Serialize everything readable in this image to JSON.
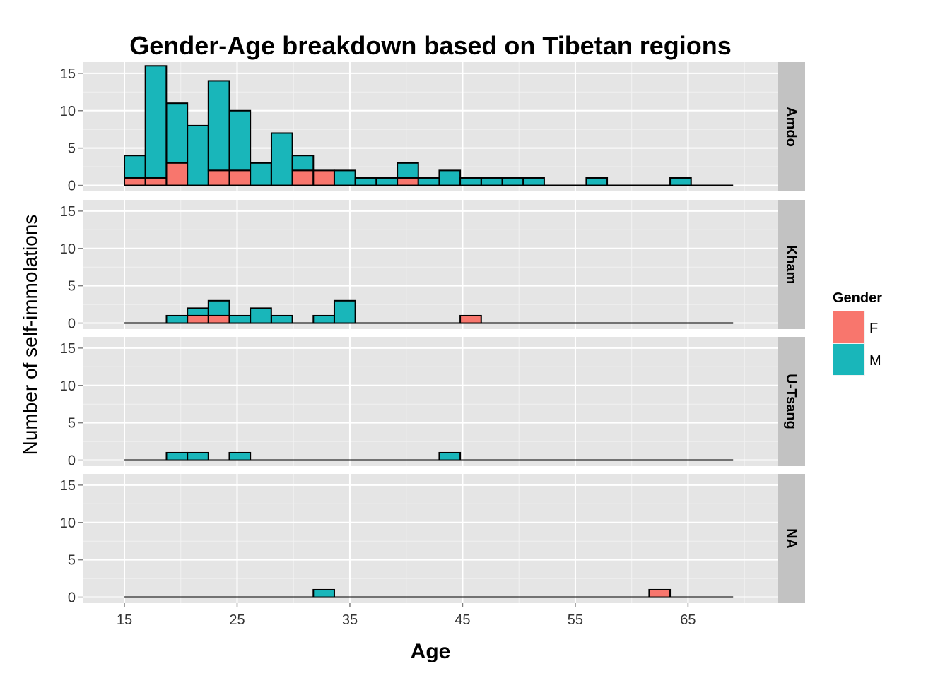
{
  "chart_data": {
    "type": "bar",
    "title": "Gender-Age breakdown based on Tibetan regions",
    "xlabel": "Age",
    "ylabel": "Number of self-immolations",
    "x_ticks": [
      15,
      25,
      35,
      45,
      55,
      65
    ],
    "y_ticks": [
      0,
      5,
      10,
      15
    ],
    "xlim": [
      11.3,
      73.0
    ],
    "ylim": [
      -0.8,
      16.5
    ],
    "baseline_x_range": [
      15,
      69
    ],
    "bin_width": 1.86,
    "grid": true,
    "stacked": true,
    "legend": {
      "title": "Gender",
      "position": "right",
      "entries": [
        {
          "label": "F",
          "color": "#F8766D"
        },
        {
          "label": "M",
          "color": "#19B6BA"
        }
      ]
    },
    "facets": [
      {
        "name": "Amdo",
        "bins": [
          {
            "x": 15.93,
            "F": 1,
            "M": 3
          },
          {
            "x": 17.79,
            "F": 1,
            "M": 15
          },
          {
            "x": 19.66,
            "F": 3,
            "M": 8
          },
          {
            "x": 21.52,
            "F": 0,
            "M": 8
          },
          {
            "x": 23.38,
            "F": 2,
            "M": 12
          },
          {
            "x": 25.24,
            "F": 2,
            "M": 8
          },
          {
            "x": 27.1,
            "F": 0,
            "M": 3
          },
          {
            "x": 28.97,
            "F": 0,
            "M": 7
          },
          {
            "x": 30.83,
            "F": 2,
            "M": 2
          },
          {
            "x": 32.69,
            "F": 2,
            "M": 0
          },
          {
            "x": 34.55,
            "F": 0,
            "M": 2
          },
          {
            "x": 36.41,
            "F": 0,
            "M": 1
          },
          {
            "x": 38.28,
            "F": 0,
            "M": 1
          },
          {
            "x": 40.14,
            "F": 1,
            "M": 2
          },
          {
            "x": 42.0,
            "F": 0,
            "M": 1
          },
          {
            "x": 43.86,
            "F": 0,
            "M": 2
          },
          {
            "x": 45.72,
            "F": 0,
            "M": 1
          },
          {
            "x": 47.59,
            "F": 0,
            "M": 1
          },
          {
            "x": 49.45,
            "F": 0,
            "M": 1
          },
          {
            "x": 51.31,
            "F": 0,
            "M": 1
          },
          {
            "x": 56.9,
            "F": 0,
            "M": 1
          },
          {
            "x": 64.34,
            "F": 0,
            "M": 1
          }
        ]
      },
      {
        "name": "Kham",
        "bins": [
          {
            "x": 19.66,
            "F": 0,
            "M": 1
          },
          {
            "x": 21.52,
            "F": 1,
            "M": 1
          },
          {
            "x": 23.38,
            "F": 1,
            "M": 2
          },
          {
            "x": 25.24,
            "F": 0,
            "M": 1
          },
          {
            "x": 27.1,
            "F": 0,
            "M": 2
          },
          {
            "x": 28.97,
            "F": 0,
            "M": 1
          },
          {
            "x": 32.69,
            "F": 0,
            "M": 1
          },
          {
            "x": 34.55,
            "F": 0,
            "M": 3
          },
          {
            "x": 45.72,
            "F": 1,
            "M": 0
          }
        ]
      },
      {
        "name": "U-Tsang",
        "bins": [
          {
            "x": 19.66,
            "F": 0,
            "M": 1
          },
          {
            "x": 21.52,
            "F": 0,
            "M": 1
          },
          {
            "x": 25.24,
            "F": 0,
            "M": 1
          },
          {
            "x": 43.86,
            "F": 0,
            "M": 1
          }
        ]
      },
      {
        "name": "NA",
        "bins": [
          {
            "x": 32.69,
            "F": 0,
            "M": 1
          },
          {
            "x": 62.48,
            "F": 1,
            "M": 0
          }
        ]
      }
    ]
  }
}
